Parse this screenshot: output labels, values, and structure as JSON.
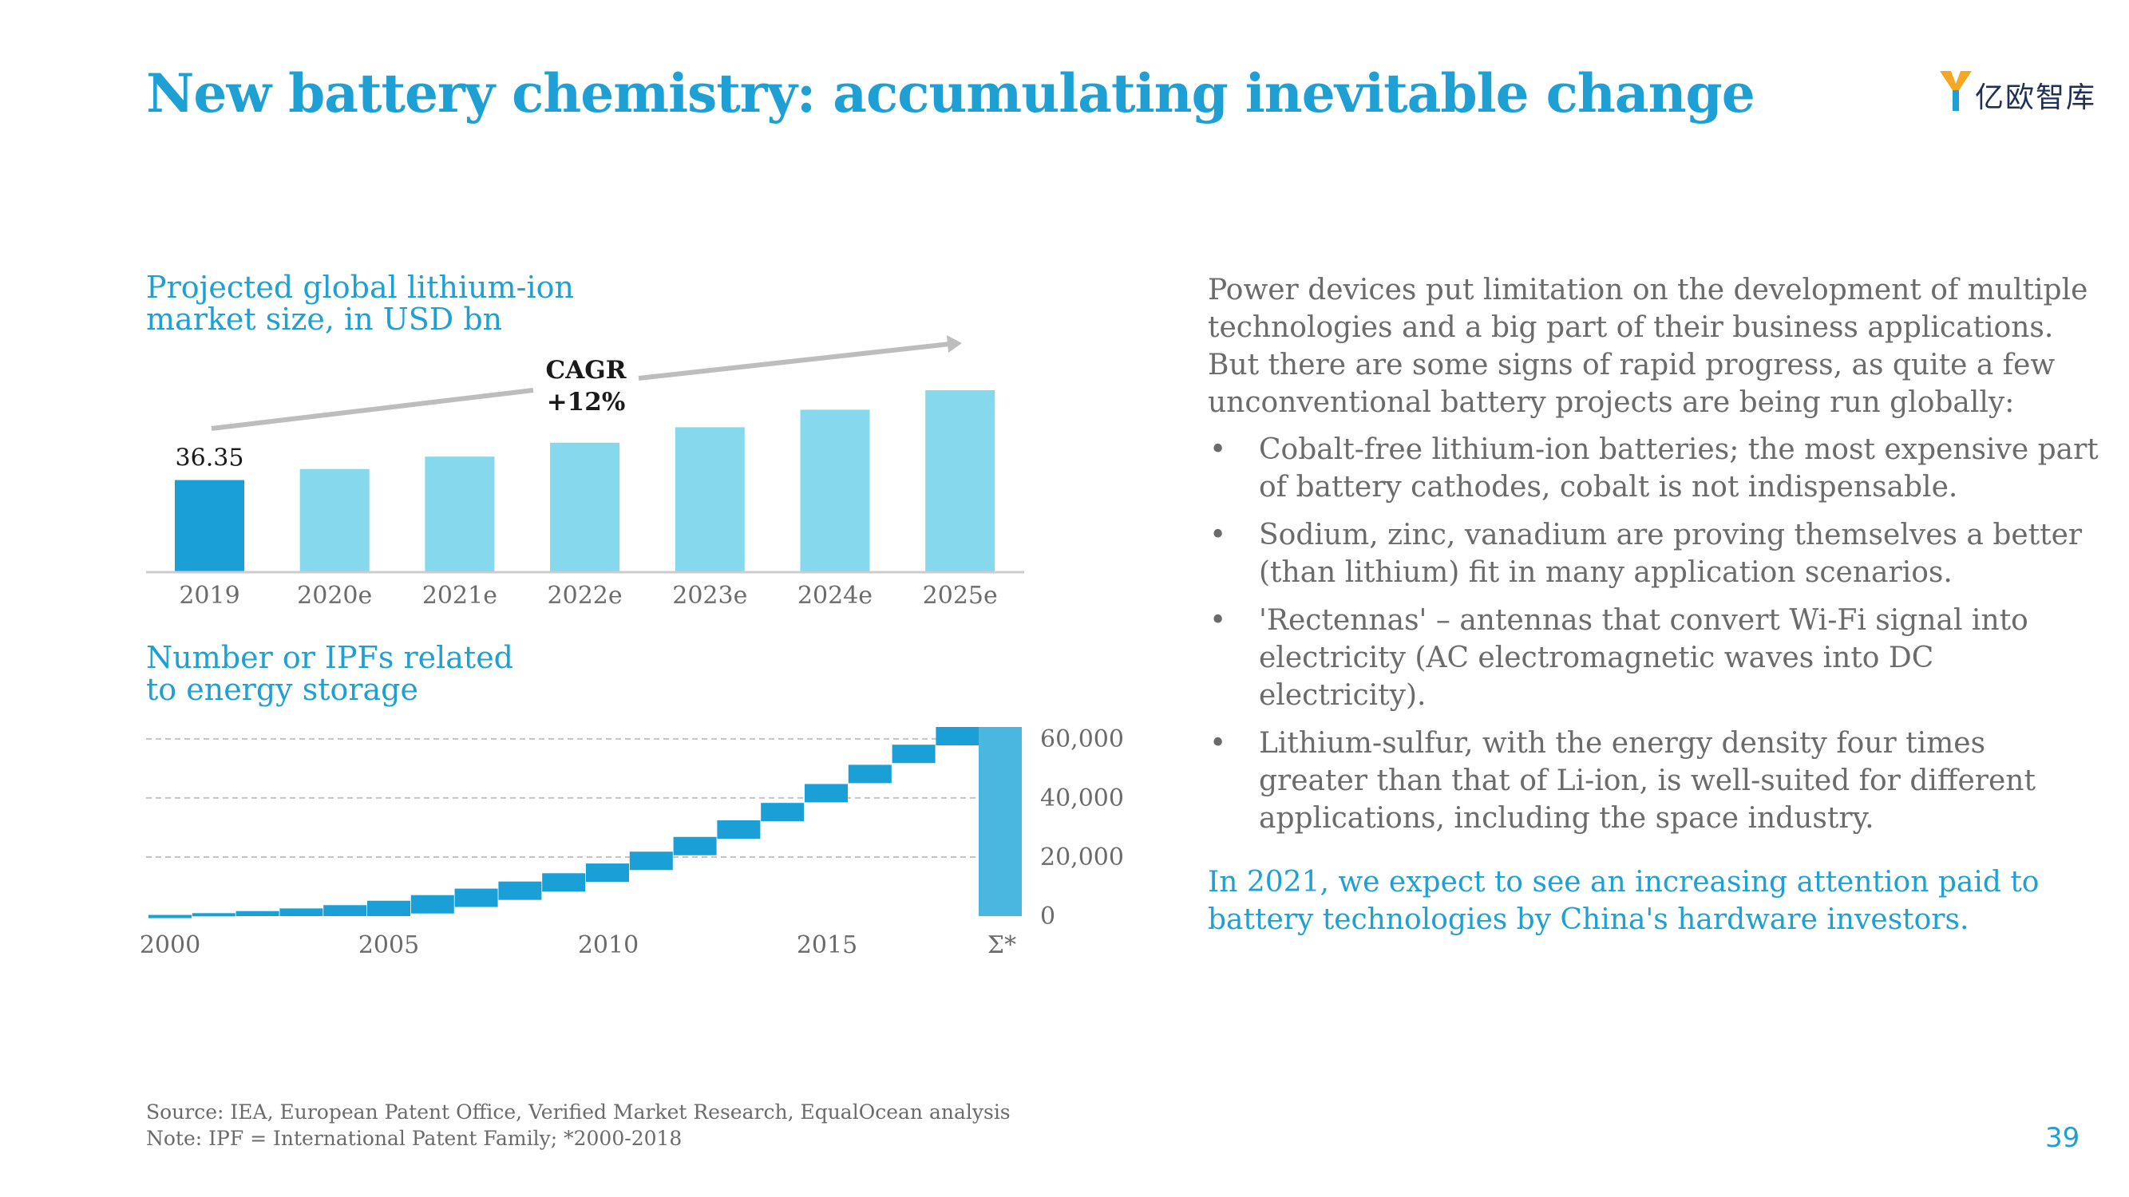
{
  "title": "New battery chemistry: accumulating inevitable change",
  "logo_text": "亿欧智库",
  "page_number": "39",
  "colors": {
    "accent": "#1ea0d5",
    "bar_highlight": "#1a9fd6",
    "bar_light": "#86d9ed",
    "step": "#1a9fd6",
    "sum_bar": "#49b7e0",
    "arrow": "#bdbdbd",
    "text": "#6b6b6b"
  },
  "chart_data": [
    {
      "type": "bar",
      "title": [
        "Projected global lithium-ion",
        "market size, in USD bn"
      ],
      "categories": [
        "2019",
        "2020e",
        "2021e",
        "2022e",
        "2023e",
        "2024e",
        "2025e"
      ],
      "values": [
        36.35,
        40.7,
        45.6,
        51.1,
        57.2,
        64.1,
        71.8
      ],
      "data_labels": [
        "36.35",
        "",
        "",
        "",
        "",
        "",
        ""
      ],
      "annotation": [
        "CAGR",
        "+12%"
      ],
      "ylim": [
        0,
        80
      ],
      "grid": false
    },
    {
      "type": "bar",
      "subtype": "waterfall",
      "title": [
        "Number or IPFs related",
        "to energy storage"
      ],
      "x_ticks": [
        "2000",
        "2005",
        "2010",
        "2015",
        "Σ*"
      ],
      "x": [
        2000,
        2001,
        2002,
        2003,
        2004,
        2005,
        2006,
        2007,
        2008,
        2009,
        2010,
        2011,
        2012,
        2013,
        2014,
        2015,
        2016,
        2017,
        2018
      ],
      "cumulative_start": [
        0,
        400,
        1000,
        1700,
        2600,
        3700,
        5200,
        7100,
        9300,
        11700,
        14500,
        17800,
        21800,
        26800,
        32400,
        38300,
        44700,
        51200,
        58000
      ],
      "cumulative_end": [
        400,
        1000,
        1700,
        2600,
        3700,
        5200,
        7100,
        9300,
        11700,
        14500,
        17800,
        21800,
        26800,
        32400,
        38300,
        44700,
        51200,
        58000,
        64000
      ],
      "total": 64000,
      "total_label": "Σ*",
      "y_ticks": [
        "0",
        "20,000",
        "40,000",
        "60,000"
      ],
      "y_tick_values": [
        0,
        20000,
        40000,
        60000
      ],
      "ylim": [
        0,
        64000
      ],
      "grid": true
    }
  ],
  "right": {
    "intro": "Power devices put limitation on the development of multiple technologies and a big part of their business applications. But there are some signs of rapid progress, as quite a few unconventional battery projects are being run globally:",
    "bullet_symbol": "•",
    "bullets": [
      "Cobalt-free lithium-ion batteries; the most expensive part of battery cathodes, cobalt is not indispensable.",
      "Sodium, zinc, vanadium are proving themselves a better (than lithium) fit in many application scenarios.",
      "'Rectennas' – antennas that convert Wi-Fi signal into electricity (AC electromagnetic waves into DC electricity).",
      "Lithium-sulfur, with the energy density four times greater than that of Li-ion, is well-suited for different applications, including the space industry."
    ],
    "conclusion": "In 2021, we expect to see an increasing attention paid to battery technologies by China's hardware investors."
  },
  "footer": {
    "source": "Source: IEA, European Patent Office, Verified Market Research, EqualOcean analysis",
    "note": "Note: IPF = International Patent Family; *2000-2018"
  }
}
